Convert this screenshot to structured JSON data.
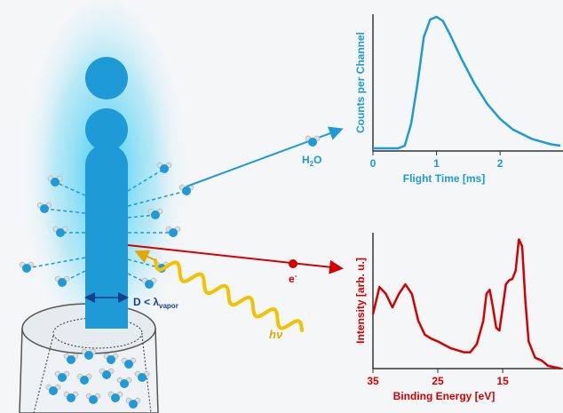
{
  "diagram": {
    "h2o_label": [
      "H",
      "2",
      "O"
    ],
    "electron_label": [
      "e",
      "-"
    ],
    "diameter_label": [
      "D < λ",
      "vapor"
    ],
    "photon_label": "hν"
  },
  "chart_data": [
    {
      "type": "line",
      "xlabel": "Flight Time [ms]",
      "ylabel": "Counts per Channel",
      "color": "#1e9ad6",
      "x": [
        0,
        0.4,
        0.5,
        0.6,
        0.7,
        0.8,
        0.9,
        1.0,
        1.1,
        1.2,
        1.4,
        1.6,
        1.8,
        2.0,
        2.2,
        2.5,
        2.8,
        2.95
      ],
      "values": [
        0.02,
        0.02,
        0.04,
        0.2,
        0.5,
        0.85,
        0.98,
        1.0,
        0.97,
        0.88,
        0.68,
        0.5,
        0.35,
        0.24,
        0.16,
        0.09,
        0.05,
        0.04
      ],
      "xlim": [
        0,
        2.99
      ],
      "ylim": [
        0,
        1.02
      ],
      "xticks": [
        0,
        1,
        2
      ]
    },
    {
      "type": "line",
      "xlabel": "Binding Energy [eV]",
      "ylabel": "Intensity [arb. u.]",
      "color": "#d40000",
      "x": [
        35,
        34,
        33,
        32,
        31,
        30,
        29,
        28,
        27,
        26,
        25,
        23,
        21,
        20,
        19,
        18,
        17.5,
        17,
        16.5,
        16,
        15.5,
        15,
        14.5,
        14,
        13.5,
        13,
        12.5,
        12,
        11.5,
        11,
        10,
        9,
        8,
        6
      ],
      "values": [
        0.4,
        0.6,
        0.55,
        0.45,
        0.55,
        0.62,
        0.55,
        0.35,
        0.25,
        0.22,
        0.2,
        0.15,
        0.12,
        0.12,
        0.18,
        0.35,
        0.55,
        0.58,
        0.45,
        0.3,
        0.28,
        0.45,
        0.62,
        0.65,
        0.66,
        0.72,
        0.95,
        0.9,
        0.5,
        0.2,
        0.08,
        0.06,
        0.02,
        0.0
      ],
      "xlim": [
        35,
        5.7
      ],
      "ylim": [
        0,
        1.0
      ],
      "xticks": [
        35,
        25,
        15
      ]
    }
  ]
}
